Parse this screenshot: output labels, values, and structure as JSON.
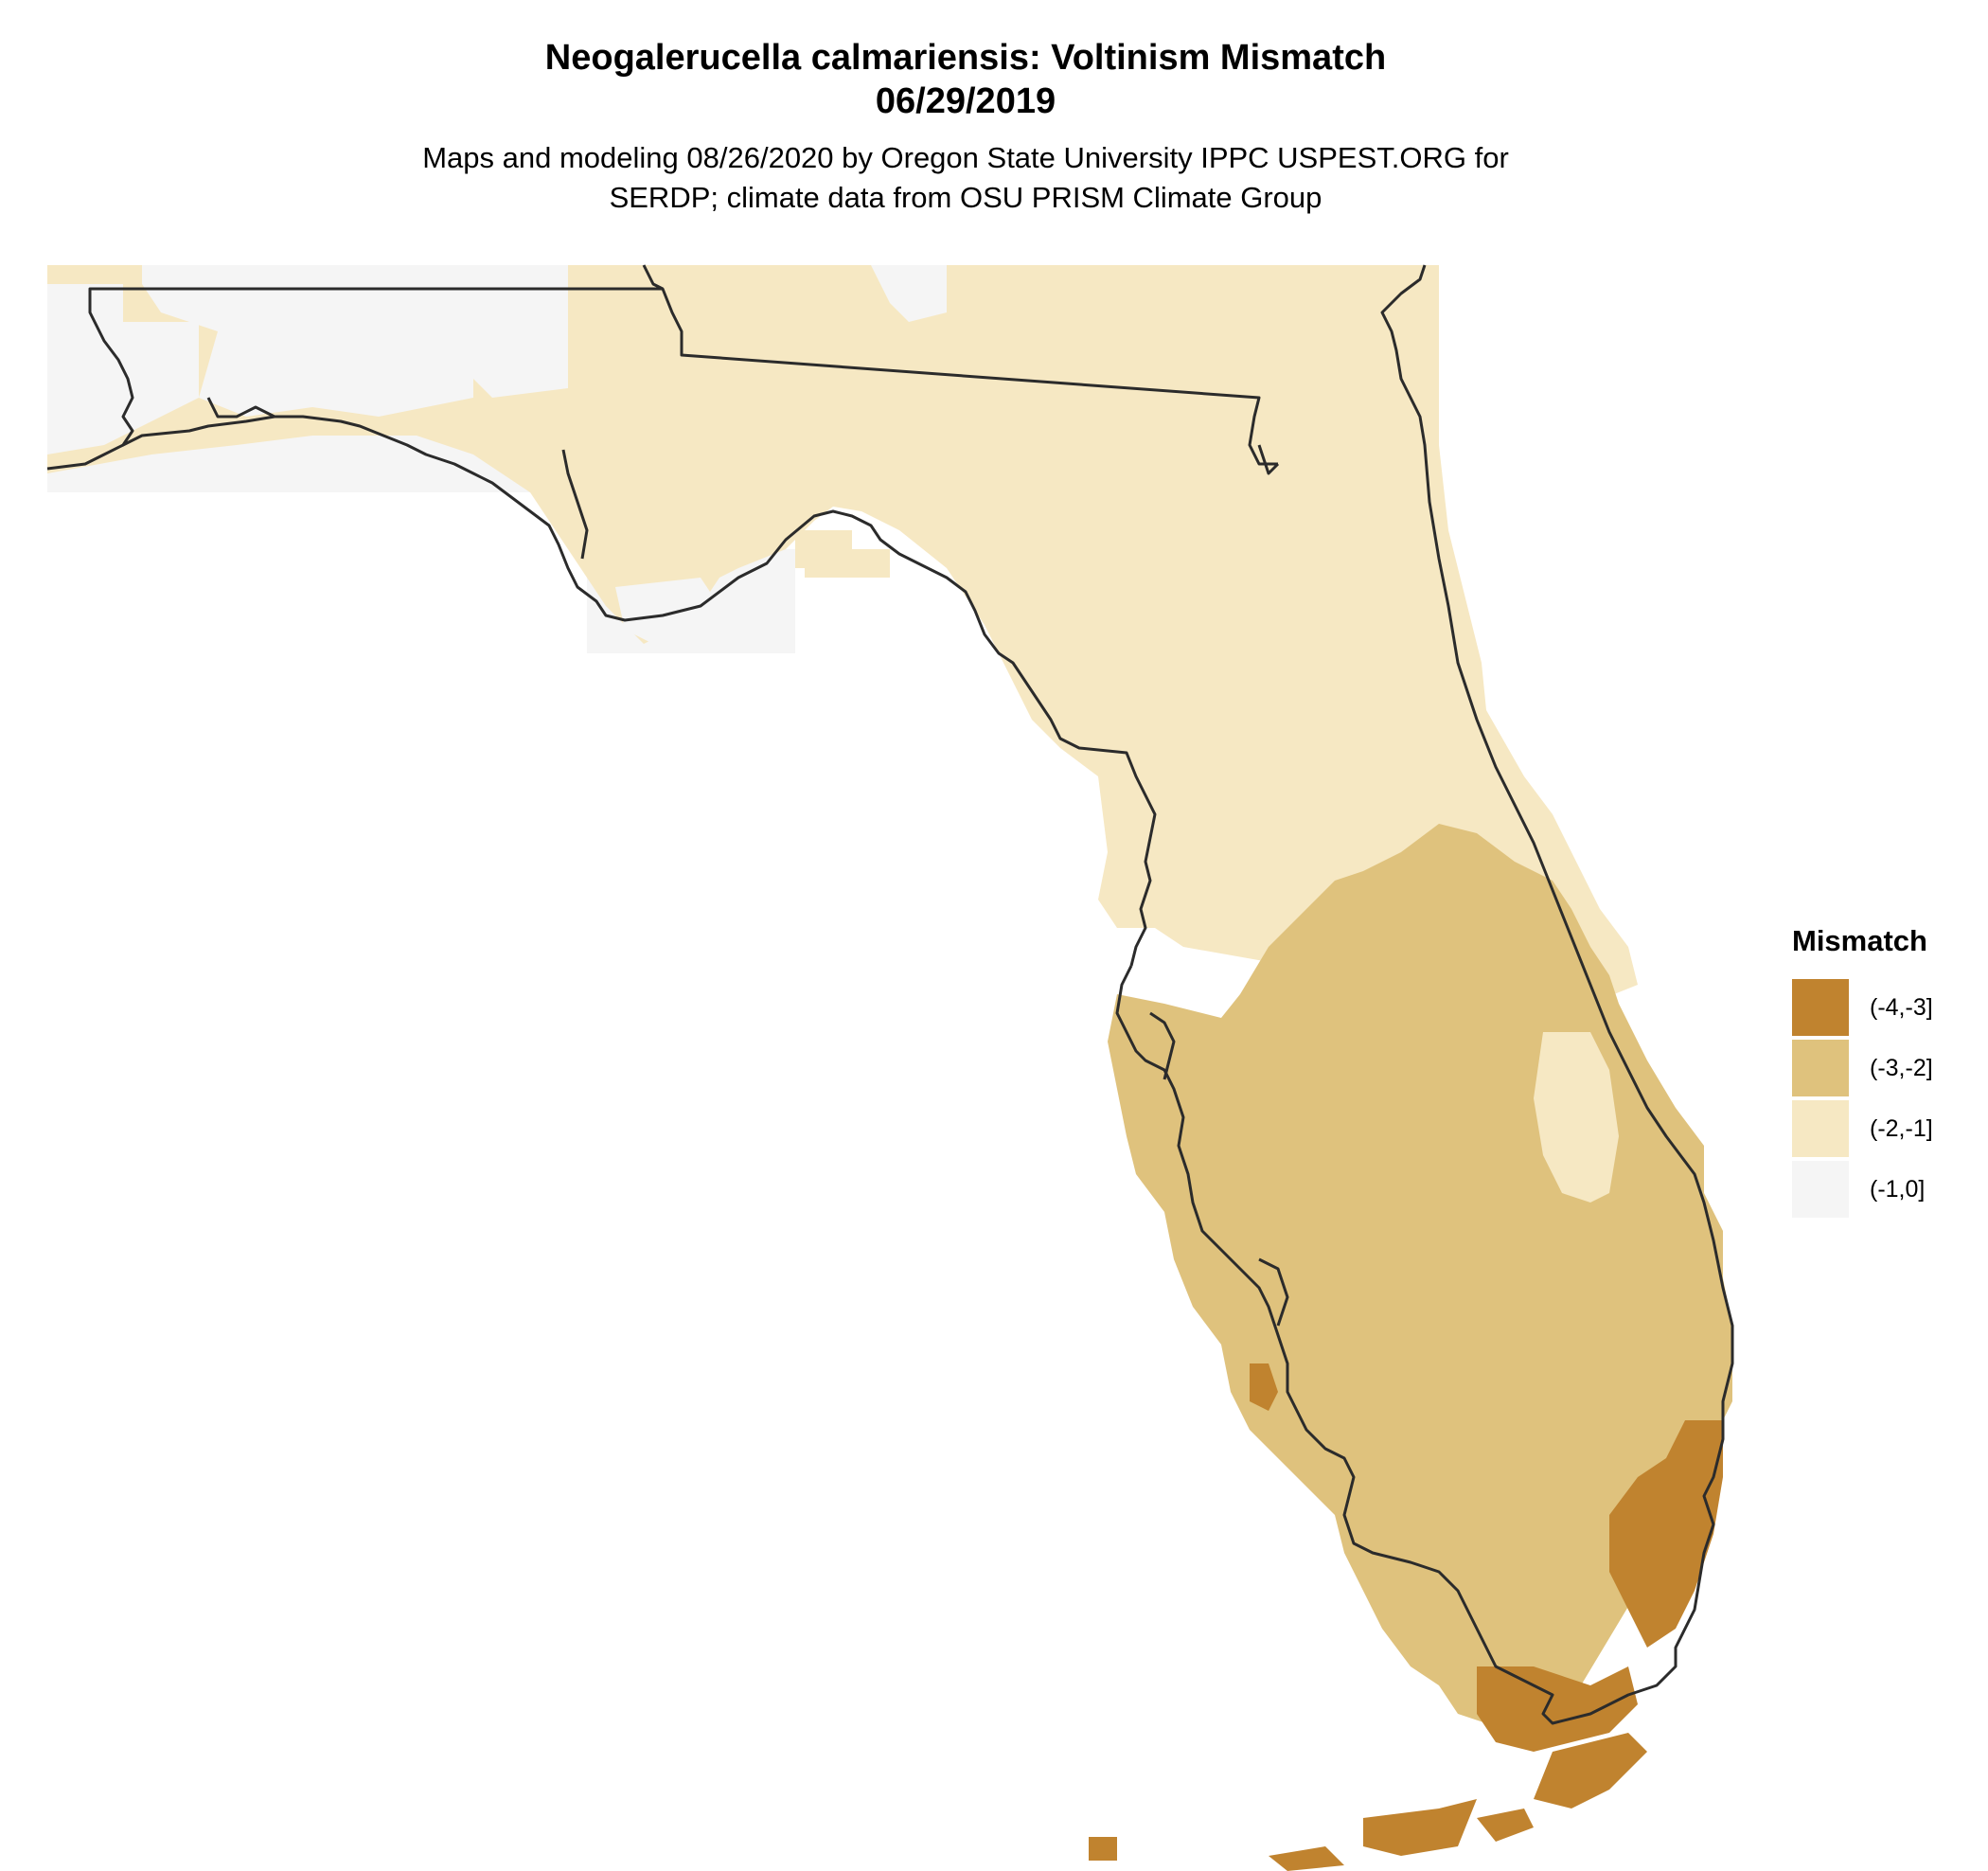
{
  "header": {
    "title_line1": "Neogalerucella calmariensis: Voltinism Mismatch",
    "title_line2": "06/29/2019",
    "subtitle_line1": "Maps and modeling 08/26/2020 by Oregon State University IPPC USPEST.ORG for",
    "subtitle_line2": "SERDP; climate data from OSU PRISM Climate Group"
  },
  "legend": {
    "title": "Mismatch",
    "items": [
      {
        "label": "(-4,-3]",
        "color": "#C0832F"
      },
      {
        "label": "(-3,-2]",
        "color": "#DFC27D"
      },
      {
        "label": "(-2,-1]",
        "color": "#F6E8C3"
      },
      {
        "label": "(-1,0]",
        "color": "#F5F5F5"
      }
    ]
  },
  "map": {
    "region": "Florida",
    "outline_color": "#2b2b2b",
    "background": "#FFFFFF"
  }
}
